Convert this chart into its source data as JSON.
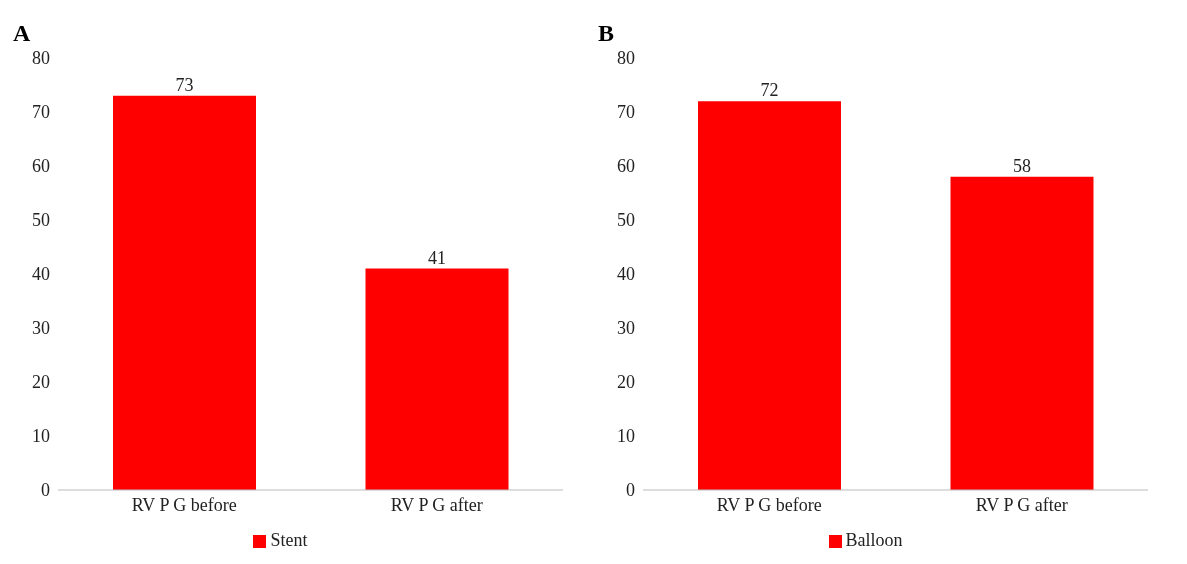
{
  "chart_data": [
    {
      "type": "bar",
      "title": "A",
      "categories": [
        "RV P G before",
        "RV P G after"
      ],
      "series": [
        {
          "name": "Stent",
          "color": "#ff0000",
          "values": [
            73,
            41
          ]
        }
      ],
      "ylim": [
        0,
        80
      ],
      "yticks": [
        0,
        10,
        20,
        30,
        40,
        50,
        60,
        70,
        80
      ],
      "grid": false,
      "legend": "bottom",
      "data_labels": true
    },
    {
      "type": "bar",
      "title": "B",
      "categories": [
        "RV P G before",
        "RV P G after"
      ],
      "series": [
        {
          "name": "Balloon",
          "color": "#ff0000",
          "values": [
            72,
            58
          ]
        }
      ],
      "ylim": [
        0,
        80
      ],
      "yticks": [
        0,
        10,
        20,
        30,
        40,
        50,
        60,
        70,
        80
      ],
      "grid": false,
      "legend": "bottom",
      "data_labels": true
    }
  ]
}
